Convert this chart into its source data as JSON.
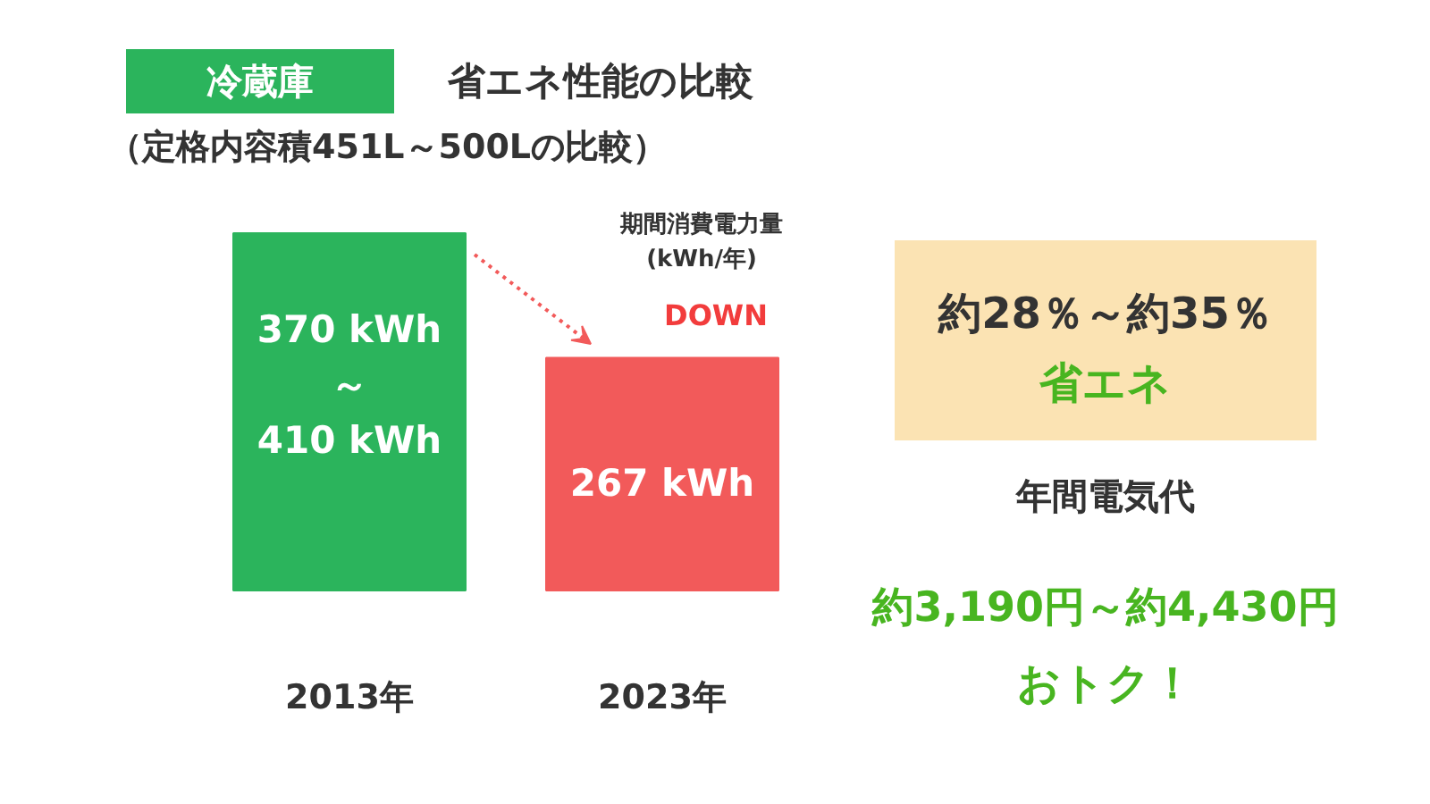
{
  "chart_data": {
    "type": "bar",
    "title": "省エネ性能の比較",
    "subtitle": "（定格内容積451L～500Lの比較）",
    "categories": [
      "2013年",
      "2023年"
    ],
    "values": [
      410,
      267
    ],
    "colors": [
      "#2bb45c",
      "#f25a5a"
    ],
    "value_labels": [
      "370 kWh\n～\n410 kWh",
      "267 kWh"
    ],
    "annotations": [
      "冷蔵庫",
      "期間消費電力量\n(kWh/年)",
      "DOWN",
      "約28％～約35％",
      "省エネ",
      "年間電気代",
      "約3,190円～約4,430円",
      "おトク！"
    ],
    "grid": false
  }
}
